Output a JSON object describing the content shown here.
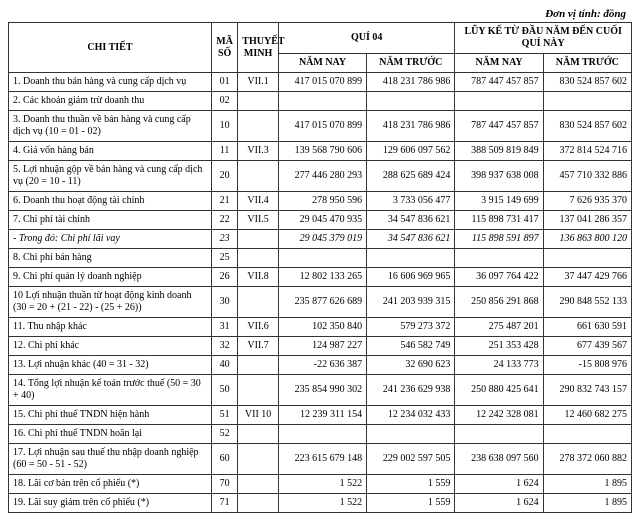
{
  "unit_label": "Đơn vị tính: đồng",
  "headers": {
    "chi_tiet": "CHI TIẾT",
    "ma_so": "MÃ SỐ",
    "thuyet_minh": "THUYẾT MINH",
    "qui_04": "QUÍ 04",
    "luy_ke": "LŨY KẾ TỪ ĐẦU NĂM ĐẾN CUỐI QUÍ NÀY",
    "nam_nay": "NĂM NAY",
    "nam_truoc": "NĂM TRƯỚC"
  },
  "rows": [
    {
      "label": "1. Doanh thu bán hàng và cung cấp dịch vụ",
      "ms": "01",
      "tm": "VII.1",
      "q_nay": "417 015 070 899",
      "q_truoc": "418 231 786 986",
      "l_nay": "787 447 457 857",
      "l_truoc": "830 524 857 602"
    },
    {
      "label": "2. Các khoản giảm trừ doanh thu",
      "ms": "02",
      "tm": "",
      "q_nay": "",
      "q_truoc": "",
      "l_nay": "",
      "l_truoc": ""
    },
    {
      "label": "3. Doanh thu thuần về bán hàng và cung cấp dịch vụ (10 = 01 - 02)",
      "ms": "10",
      "tm": "",
      "q_nay": "417 015 070 899",
      "q_truoc": "418 231 786 986",
      "l_nay": "787 447 457 857",
      "l_truoc": "830 524 857 602"
    },
    {
      "label": "4. Giá vốn hàng bán",
      "ms": "11",
      "tm": "VII.3",
      "q_nay": "139 568 790 606",
      "q_truoc": "129 606 097 562",
      "l_nay": "388 509 819 849",
      "l_truoc": "372 814 524 716"
    },
    {
      "label": "5. Lợi nhuận gộp về bán hàng và cung cấp dịch vụ (20 = 10 - 11)",
      "ms": "20",
      "tm": "",
      "q_nay": "277 446 280 293",
      "q_truoc": "288 625 689 424",
      "l_nay": "398 937 638 008",
      "l_truoc": "457 710 332 886"
    },
    {
      "label": "6. Doanh thu hoạt động tài chính",
      "ms": "21",
      "tm": "VII.4",
      "q_nay": "278 950 596",
      "q_truoc": "3 733 056 477",
      "l_nay": "3 915 149 699",
      "l_truoc": "7 626 935 370"
    },
    {
      "label": "7. Chi phí tài chính",
      "ms": "22",
      "tm": "VII.5",
      "q_nay": "29 045 470 935",
      "q_truoc": "34 547 836 621",
      "l_nay": "115 898 731 417",
      "l_truoc": "137 041 286 357"
    },
    {
      "label": "  - Trong đó: Chi phí lãi vay",
      "ms": "23",
      "tm": "",
      "q_nay": "29 045 379 019",
      "q_truoc": "34 547 836 621",
      "l_nay": "115 898 591 897",
      "l_truoc": "136 863 800 120",
      "italic": true
    },
    {
      "label": "8. Chi phí bán hàng",
      "ms": "25",
      "tm": "",
      "q_nay": "",
      "q_truoc": "",
      "l_nay": "",
      "l_truoc": ""
    },
    {
      "label": "9. Chi phí quản lý doanh nghiệp",
      "ms": "26",
      "tm": "VII.8",
      "q_nay": "12 802 133 265",
      "q_truoc": "16 606 969 965",
      "l_nay": "36 097 764 422",
      "l_truoc": "37 447 429 766"
    },
    {
      "label": "10 Lợi nhuận thuần từ hoạt động kinh doanh (30 = 20 + (21 - 22) - (25 + 26))",
      "ms": "30",
      "tm": "",
      "q_nay": "235 877 626 689",
      "q_truoc": "241 203 939 315",
      "l_nay": "250 856 291 868",
      "l_truoc": "290 848 552 133"
    },
    {
      "label": "11. Thu nhập khác",
      "ms": "31",
      "tm": "VII.6",
      "q_nay": "102 350 840",
      "q_truoc": "579 273 372",
      "l_nay": "275 487 201",
      "l_truoc": "661 630 591"
    },
    {
      "label": "12. Chi phí khác",
      "ms": "32",
      "tm": "VII.7",
      "q_nay": "124 987 227",
      "q_truoc": "546 582 749",
      "l_nay": "251 353 428",
      "l_truoc": "677 439 567"
    },
    {
      "label": "13. Lợi nhuận khác (40 = 31 - 32)",
      "ms": "40",
      "tm": "",
      "q_nay": "-22 636 387",
      "q_truoc": "32 690 623",
      "l_nay": "24 133 773",
      "l_truoc": "-15 808 976"
    },
    {
      "label": "14. Tổng lợi nhuận kế toán trước thuế (50 = 30 + 40)",
      "ms": "50",
      "tm": "",
      "q_nay": "235 854 990 302",
      "q_truoc": "241 236 629 938",
      "l_nay": "250 880 425 641",
      "l_truoc": "290 832 743 157"
    },
    {
      "label": "15. Chi phí thuế TNDN hiện hành",
      "ms": "51",
      "tm": "VII 10",
      "q_nay": "12 239 311 154",
      "q_truoc": "12 234 032 433",
      "l_nay": "12 242 328 081",
      "l_truoc": "12 460 682 275"
    },
    {
      "label": "16. Chi phí thuế TNDN hoãn lại",
      "ms": "52",
      "tm": "",
      "q_nay": "",
      "q_truoc": "",
      "l_nay": "",
      "l_truoc": ""
    },
    {
      "label": "17. Lợi nhuận sau thuế thu nhập doanh nghiệp (60 = 50 - 51 - 52)",
      "ms": "60",
      "tm": "",
      "q_nay": "223 615 679 148",
      "q_truoc": "229 002 597 505",
      "l_nay": "238 638 097 560",
      "l_truoc": "278 372 060 882"
    },
    {
      "label": "18. Lãi cơ bản trên cổ phiếu (*)",
      "ms": "70",
      "tm": "",
      "q_nay": "1 522",
      "q_truoc": "1 559",
      "l_nay": "1 624",
      "l_truoc": "1 895"
    },
    {
      "label": "19. Lãi suy giảm trên cổ phiếu (*)",
      "ms": "71",
      "tm": "",
      "q_nay": "1 522",
      "q_truoc": "1 559",
      "l_nay": "1 624",
      "l_truoc": "1 895"
    }
  ]
}
